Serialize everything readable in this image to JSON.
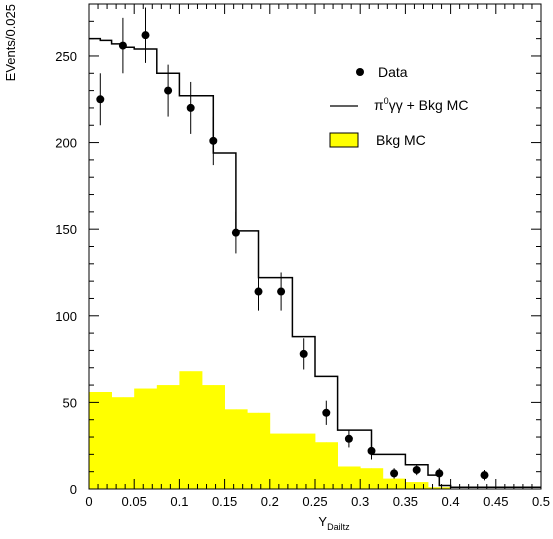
{
  "chart_data": {
    "type": "bar",
    "xlabel": "Y",
    "xlabel_sub": "Dailtz",
    "ylabel": "EVents/0.025",
    "xlim": [
      0,
      0.5
    ],
    "ylim": [
      0,
      280
    ],
    "x_ticks": [
      0,
      0.05,
      0.1,
      0.15,
      0.2,
      0.25,
      0.3,
      0.35,
      0.4,
      0.45,
      0.5
    ],
    "x_tick_labels": [
      "0",
      "0.05",
      "0.1",
      "0.15",
      "0.2",
      "0.25",
      "0.3",
      "0.35",
      "0.4",
      "0.45",
      "0.5"
    ],
    "y_ticks": [
      0,
      50,
      100,
      150,
      200,
      250
    ],
    "y_tick_labels": [
      "0",
      "50",
      "100",
      "150",
      "200",
      "250"
    ],
    "grid": false,
    "legend_position": "top-right",
    "legend": [
      {
        "label": "Data",
        "kind": "marker"
      },
      {
        "label_main": "π",
        "label_sup": "0",
        "label_rest": "γγ + Bkg MC",
        "kind": "line"
      },
      {
        "label": "Bkg MC",
        "kind": "fill"
      }
    ],
    "series": [
      {
        "name": "Bkg MC",
        "kind": "histogram-filled",
        "color": "#ffff00",
        "bin_edges": [
          0,
          0.0125,
          0.025,
          0.0375,
          0.05,
          0.0625,
          0.075,
          0.0875,
          0.1,
          0.1125,
          0.125,
          0.1375,
          0.15,
          0.1625,
          0.175,
          0.1875,
          0.2,
          0.2125,
          0.225,
          0.2375,
          0.25,
          0.2625,
          0.275,
          0.2875,
          0.3,
          0.3125,
          0.325,
          0.3375,
          0.35,
          0.3625,
          0.375,
          0.3875,
          0.4
        ],
        "values": [
          56,
          56,
          53,
          53,
          58,
          58,
          60,
          60,
          68,
          68,
          60,
          60,
          46,
          46,
          44,
          44,
          32,
          32,
          32,
          32,
          27,
          27,
          13,
          13,
          12,
          12,
          6,
          6,
          4,
          4,
          1,
          1
        ]
      },
      {
        "name": "π0γγ + Bkg MC",
        "kind": "histogram-step",
        "color": "#000000",
        "bin_edges": [
          0,
          0.0125,
          0.025,
          0.0375,
          0.05,
          0.0625,
          0.075,
          0.0875,
          0.1,
          0.1125,
          0.125,
          0.1375,
          0.15,
          0.1625,
          0.175,
          0.1875,
          0.2,
          0.2125,
          0.225,
          0.2375,
          0.25,
          0.2625,
          0.275,
          0.2875,
          0.3,
          0.3125,
          0.325,
          0.3375,
          0.35,
          0.3625,
          0.375,
          0.3875,
          0.4,
          0.4125,
          0.425,
          0.4375,
          0.45,
          0.4625,
          0.475,
          0.4875,
          0.5
        ],
        "values": [
          260,
          259,
          257,
          255,
          254,
          254,
          240,
          240,
          227,
          227,
          227,
          194,
          194,
          149,
          149,
          122,
          122,
          122,
          88,
          88,
          65,
          65,
          34,
          34,
          34,
          20,
          20,
          20,
          14,
          14,
          8,
          2,
          1,
          1,
          1,
          1,
          1,
          1,
          1,
          1
        ]
      },
      {
        "name": "Data",
        "kind": "points-with-errors",
        "color": "#000000",
        "points": [
          {
            "x": 0.0125,
            "y": 225,
            "err": 15
          },
          {
            "x": 0.0375,
            "y": 256,
            "err": 16
          },
          {
            "x": 0.0625,
            "y": 262,
            "err": 16
          },
          {
            "x": 0.0875,
            "y": 230,
            "err": 15
          },
          {
            "x": 0.1125,
            "y": 220,
            "err": 15
          },
          {
            "x": 0.1375,
            "y": 201,
            "err": 14
          },
          {
            "x": 0.1625,
            "y": 148,
            "err": 12
          },
          {
            "x": 0.1875,
            "y": 114,
            "err": 11
          },
          {
            "x": 0.2125,
            "y": 114,
            "err": 11
          },
          {
            "x": 0.2375,
            "y": 78,
            "err": 9
          },
          {
            "x": 0.2625,
            "y": 44,
            "err": 7
          },
          {
            "x": 0.2875,
            "y": 29,
            "err": 5
          },
          {
            "x": 0.3125,
            "y": 22,
            "err": 5
          },
          {
            "x": 0.3375,
            "y": 9,
            "err": 3
          },
          {
            "x": 0.3625,
            "y": 11,
            "err": 3
          },
          {
            "x": 0.3875,
            "y": 9,
            "err": 3
          },
          {
            "x": 0.4375,
            "y": 8,
            "err": 3
          }
        ]
      }
    ]
  }
}
